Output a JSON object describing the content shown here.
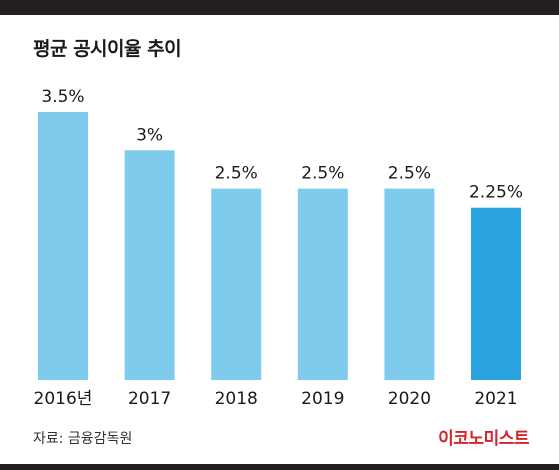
{
  "title": "평균 공시이율 추이",
  "source": "자료: 금융감독원",
  "logo": "이코노미스트",
  "colors": {
    "bar": "#7ecbee",
    "highlight": "#29a4df",
    "text": "#1a1a1a",
    "brand": "#d7232b"
  },
  "chart_data": {
    "type": "bar",
    "title": "평균 공시이율 추이",
    "categories": [
      "2016년",
      "2017",
      "2018",
      "2019",
      "2020",
      "2021"
    ],
    "values": [
      3.5,
      3,
      2.5,
      2.5,
      2.5,
      2.25
    ],
    "data_labels": [
      "3.5%",
      "3%",
      "2.5%",
      "2.5%",
      "2.5%",
      "2.25%"
    ],
    "highlight_index": 5,
    "ylim": [
      0,
      3.5
    ],
    "grid": false,
    "legend": "none",
    "xlabel": "",
    "ylabel": ""
  }
}
